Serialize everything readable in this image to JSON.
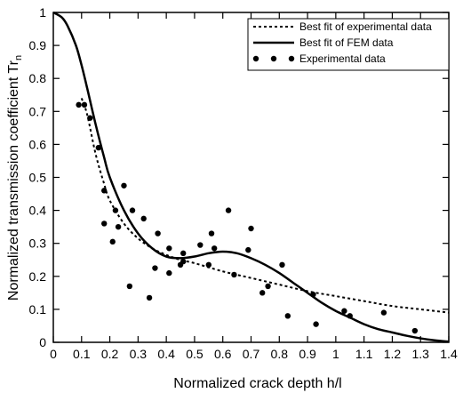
{
  "chart_data": {
    "type": "line",
    "title": "",
    "xlabel": "Normalized crack depth h/l",
    "ylabel": "Normalized transmission coefficient Tr",
    "ylabel_subscript": "n",
    "xlim": [
      0,
      1.4
    ],
    "ylim": [
      0,
      1
    ],
    "x_ticks": [
      "0",
      "0.1",
      "0.2",
      "0.3",
      "0.4",
      "0.5",
      "0.6",
      "0.7",
      "0.8",
      "0.9",
      "1",
      "1.1",
      "1.2",
      "1.3",
      "1.4"
    ],
    "y_ticks": [
      "0",
      "0.1",
      "0.2",
      "0.3",
      "0.4",
      "0.5",
      "0.6",
      "0.7",
      "0.8",
      "0.9",
      "1"
    ],
    "grid": false,
    "legend_position": "top-right",
    "series": [
      {
        "name": "Best fit of experimental data",
        "style": "dotted",
        "x": [
          0.1,
          0.12,
          0.15,
          0.18,
          0.2,
          0.25,
          0.3,
          0.35,
          0.4,
          0.45,
          0.5,
          0.6,
          0.7,
          0.8,
          0.9,
          1.0,
          1.1,
          1.2,
          1.3,
          1.4
        ],
        "y": [
          0.74,
          0.69,
          0.57,
          0.48,
          0.43,
          0.36,
          0.315,
          0.285,
          0.265,
          0.25,
          0.24,
          0.215,
          0.195,
          0.175,
          0.155,
          0.14,
          0.125,
          0.11,
          0.1,
          0.09
        ]
      },
      {
        "name": "Best fit of FEM data",
        "style": "solid",
        "x": [
          0.0,
          0.03,
          0.05,
          0.08,
          0.1,
          0.12,
          0.15,
          0.18,
          0.2,
          0.25,
          0.3,
          0.35,
          0.4,
          0.45,
          0.5,
          0.55,
          0.6,
          0.65,
          0.7,
          0.75,
          0.8,
          0.85,
          0.9,
          0.95,
          1.0,
          1.05,
          1.1,
          1.15,
          1.2,
          1.25,
          1.3,
          1.35,
          1.4
        ],
        "y": [
          1.0,
          0.985,
          0.96,
          0.9,
          0.84,
          0.77,
          0.66,
          0.56,
          0.5,
          0.4,
          0.33,
          0.285,
          0.26,
          0.255,
          0.26,
          0.27,
          0.275,
          0.27,
          0.255,
          0.235,
          0.21,
          0.18,
          0.15,
          0.12,
          0.095,
          0.075,
          0.055,
          0.04,
          0.03,
          0.02,
          0.012,
          0.006,
          0.002
        ]
      },
      {
        "name": "Experimental data",
        "style": "markers",
        "x": [
          0.09,
          0.11,
          0.13,
          0.16,
          0.18,
          0.18,
          0.21,
          0.22,
          0.23,
          0.25,
          0.27,
          0.28,
          0.32,
          0.34,
          0.36,
          0.37,
          0.41,
          0.41,
          0.46,
          0.45,
          0.46,
          0.52,
          0.55,
          0.56,
          0.57,
          0.62,
          0.64,
          0.69,
          0.7,
          0.74,
          0.76,
          0.81,
          0.83,
          0.92,
          0.93,
          1.03,
          1.05,
          1.17,
          1.28
        ],
        "y": [
          0.72,
          0.72,
          0.68,
          0.59,
          0.46,
          0.36,
          0.305,
          0.4,
          0.35,
          0.475,
          0.17,
          0.4,
          0.375,
          0.135,
          0.225,
          0.33,
          0.285,
          0.21,
          0.27,
          0.235,
          0.245,
          0.295,
          0.235,
          0.33,
          0.285,
          0.4,
          0.205,
          0.28,
          0.345,
          0.15,
          0.17,
          0.235,
          0.08,
          0.145,
          0.055,
          0.095,
          0.08,
          0.09,
          0.035
        ]
      }
    ]
  }
}
